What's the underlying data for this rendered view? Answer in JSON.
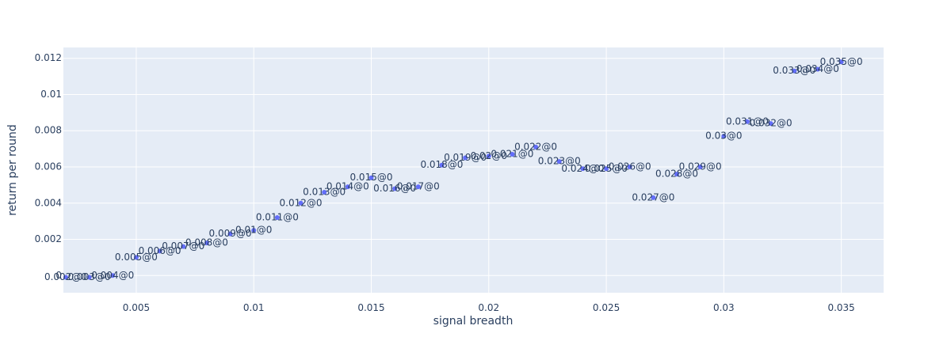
{
  "chart_data": {
    "type": "scatter",
    "title": "",
    "xlabel": "signal breadth",
    "ylabel": "return per round",
    "xlim": [
      0.0019,
      0.0368
    ],
    "ylim": [
      -0.00095,
      0.0126
    ],
    "xticks": [
      0.005,
      0.01,
      0.015,
      0.02,
      0.025,
      0.03,
      0.035
    ],
    "xtick_labels": [
      "0.005",
      "0.01",
      "0.015",
      "0.02",
      "0.025",
      "0.03",
      "0.035"
    ],
    "yticks": [
      0,
      0.002,
      0.004,
      0.006,
      0.008,
      0.01,
      0.012
    ],
    "ytick_labels": [
      "0",
      "0.002",
      "0.004",
      "0.006",
      "0.008",
      "0.01",
      "0.012"
    ],
    "grid": true,
    "marker_color": "#636efa",
    "plot_bg": "#e5ecf6",
    "points": [
      {
        "x": 0.002,
        "y": -0.0001,
        "label": "0.002@0"
      },
      {
        "x": 0.003,
        "y": -0.0001,
        "label": "0.003@0"
      },
      {
        "x": 0.004,
        "y": 0.0,
        "label": "0.004@0"
      },
      {
        "x": 0.005,
        "y": 0.001,
        "label": "0.005@0"
      },
      {
        "x": 0.006,
        "y": 0.00135,
        "label": "0.006@0"
      },
      {
        "x": 0.007,
        "y": 0.0016,
        "label": "0.007@0"
      },
      {
        "x": 0.008,
        "y": 0.0018,
        "label": "0.008@0"
      },
      {
        "x": 0.009,
        "y": 0.0023,
        "label": "0.009@0"
      },
      {
        "x": 0.01,
        "y": 0.0025,
        "label": "0.01@0"
      },
      {
        "x": 0.011,
        "y": 0.0032,
        "label": "0.011@0"
      },
      {
        "x": 0.012,
        "y": 0.004,
        "label": "0.012@0"
      },
      {
        "x": 0.013,
        "y": 0.0046,
        "label": "0.013@0"
      },
      {
        "x": 0.014,
        "y": 0.0049,
        "label": "0.014@0"
      },
      {
        "x": 0.015,
        "y": 0.0054,
        "label": "0.015@0"
      },
      {
        "x": 0.016,
        "y": 0.0048,
        "label": "0.016@0"
      },
      {
        "x": 0.017,
        "y": 0.0049,
        "label": "0.017@0"
      },
      {
        "x": 0.018,
        "y": 0.0061,
        "label": "0.018@0"
      },
      {
        "x": 0.019,
        "y": 0.0065,
        "label": "0.019@0"
      },
      {
        "x": 0.02,
        "y": 0.0066,
        "label": "0.02@0"
      },
      {
        "x": 0.021,
        "y": 0.0067,
        "label": "0.021@0"
      },
      {
        "x": 0.022,
        "y": 0.0071,
        "label": "0.022@0"
      },
      {
        "x": 0.023,
        "y": 0.0063,
        "label": "0.023@0"
      },
      {
        "x": 0.024,
        "y": 0.0059,
        "label": "0.024@0"
      },
      {
        "x": 0.025,
        "y": 0.0059,
        "label": "0.025@0"
      },
      {
        "x": 0.026,
        "y": 0.006,
        "label": "0.026@0"
      },
      {
        "x": 0.027,
        "y": 0.0043,
        "label": "0.027@0"
      },
      {
        "x": 0.028,
        "y": 0.0056,
        "label": "0.028@0"
      },
      {
        "x": 0.029,
        "y": 0.006,
        "label": "0.029@0"
      },
      {
        "x": 0.03,
        "y": 0.0077,
        "label": "0.03@0"
      },
      {
        "x": 0.031,
        "y": 0.0085,
        "label": "0.031@0"
      },
      {
        "x": 0.032,
        "y": 0.0084,
        "label": "0.032@0"
      },
      {
        "x": 0.033,
        "y": 0.0113,
        "label": "0.033@0"
      },
      {
        "x": 0.034,
        "y": 0.0114,
        "label": "0.034@0"
      },
      {
        "x": 0.035,
        "y": 0.0118,
        "label": "0.035@0"
      }
    ]
  }
}
